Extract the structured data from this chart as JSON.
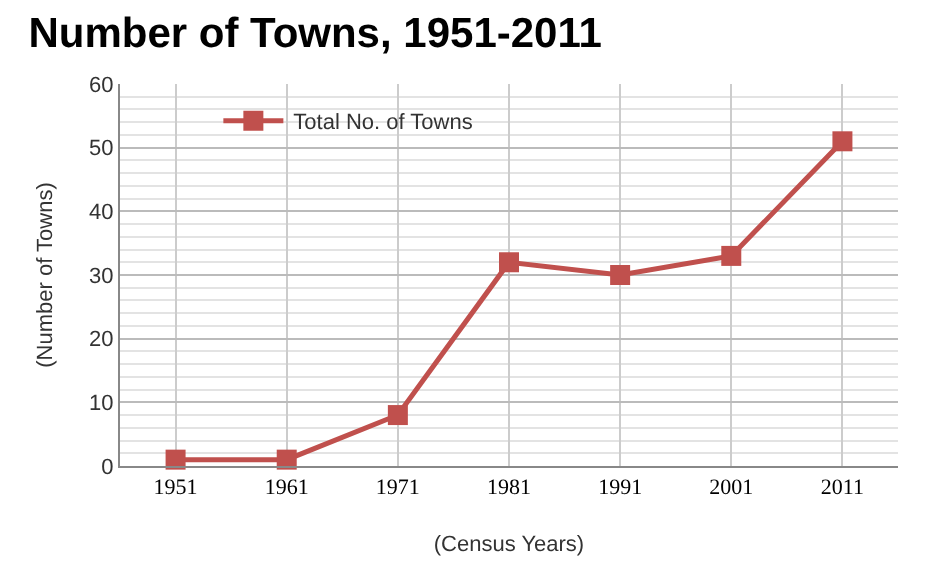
{
  "chart_data": {
    "type": "line",
    "title": "Number of Towns, 1951-2011",
    "xlabel": "(Census Years)",
    "ylabel": "(Number of Towns)",
    "categories": [
      "1951",
      "1961",
      "1971",
      "1981",
      "1991",
      "2001",
      "2011"
    ],
    "series": [
      {
        "name": "Total No. of Towns",
        "color": "#c0504d",
        "values": [
          1,
          1,
          8,
          32,
          30,
          33,
          51
        ]
      }
    ],
    "ylim": [
      0,
      60
    ],
    "yticks": [
      0,
      10,
      20,
      30,
      40,
      50,
      60
    ],
    "grid": true,
    "legend": "top left",
    "marker": "square",
    "line_style": "solid"
  }
}
